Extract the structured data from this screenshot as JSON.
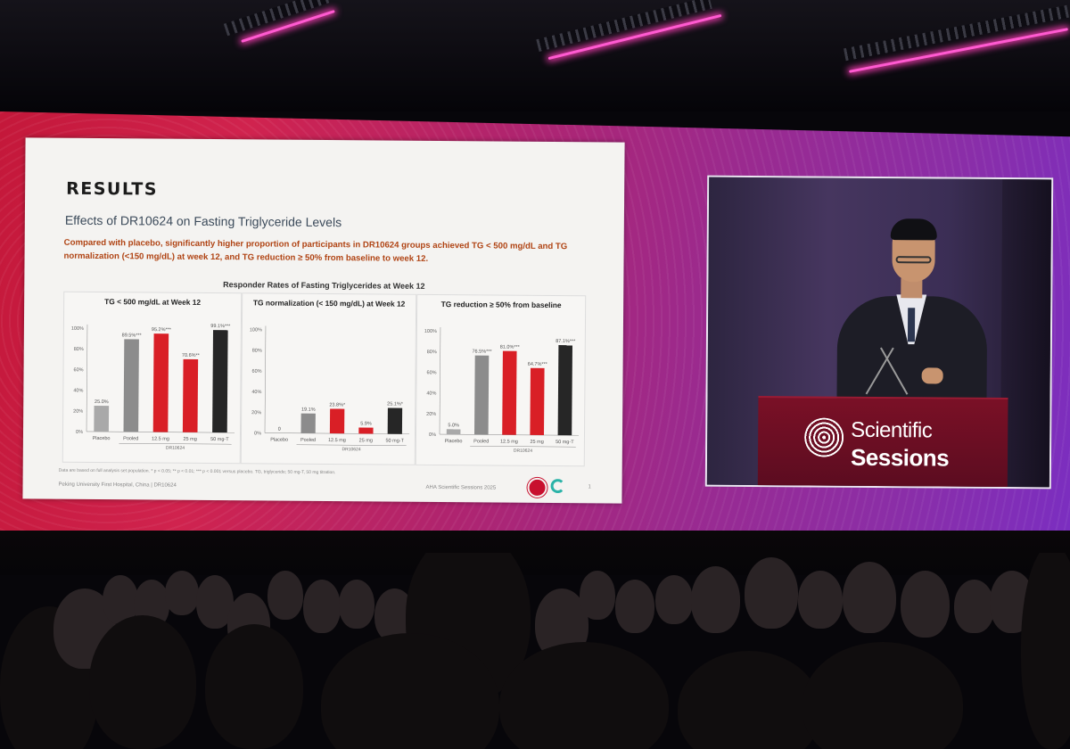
{
  "slide": {
    "heading": "RESULTS",
    "subtitle": "Effects of DR10624 on Fasting Triglyceride Levels",
    "summary": "Compared with placebo, significantly higher proportion of participants in DR10624 groups achieved TG < 500 mg/dL and TG normalization (<150 mg/dL) at week 12, and TG reduction ≥ 50% from baseline to week 12.",
    "chart_title": "Responder Rates of Fasting Triglycerides at Week 12",
    "footnote": "Data are based on full analysis set population. * p < 0.05; ** p < 0.01; *** p < 0.001 versus placebo. TG, triglyceride; 50 mg-T, 50 mg titration.",
    "affiliation": "Peking University First Hospital, China | DR10624",
    "event": "AHA Scientific Sessions 2025",
    "page_number": "1"
  },
  "podium": {
    "line1": "Scientific",
    "line2": "Sessions"
  },
  "colors": {
    "placebo": "#a9a9a9",
    "pooled": "#8c8c8c",
    "dose": "#d91f26",
    "titration": "#262626"
  },
  "chart_data": [
    {
      "type": "bar",
      "title": "TG < 500 mg/dL at Week 12",
      "categories": [
        "Placebo",
        "Pooled",
        "12.5 mg",
        "25 mg",
        "50 mg-T"
      ],
      "group_label": "DR10624",
      "values": [
        25.0,
        89.5,
        95.2,
        70.6,
        99.1
      ],
      "value_labels": [
        "25.0%",
        "89.5%***",
        "95.2%***",
        "70.6%**",
        "99.1%***"
      ],
      "ylim": [
        0,
        100
      ],
      "yticks": [
        "0%",
        "20%",
        "40%",
        "60%",
        "80%",
        "100%"
      ]
    },
    {
      "type": "bar",
      "title": "TG normalization (< 150 mg/dL) at Week 12",
      "categories": [
        "Placebo",
        "Pooled",
        "12.5 mg",
        "25 mg",
        "50 mg-T"
      ],
      "group_label": "DR10624",
      "values": [
        0,
        19.1,
        23.8,
        5.9,
        25.1
      ],
      "value_labels": [
        "0",
        "19.1%",
        "23.8%*",
        "5.9%",
        "25.1%*"
      ],
      "ylim": [
        0,
        100
      ],
      "yticks": [
        "0%",
        "20%",
        "40%",
        "60%",
        "80%",
        "100%"
      ]
    },
    {
      "type": "bar",
      "title": "TG reduction ≥ 50% from baseline",
      "categories": [
        "Placebo",
        "Pooled",
        "12.5 mg",
        "25 mg",
        "50 mg-T"
      ],
      "group_label": "DR10624",
      "values": [
        5.0,
        76.5,
        81.0,
        64.7,
        87.1
      ],
      "value_labels": [
        "5.0%",
        "76.5%***",
        "81.0%***",
        "64.7%***",
        "87.1%***"
      ],
      "ylim": [
        0,
        100
      ],
      "yticks": [
        "0%",
        "20%",
        "40%",
        "60%",
        "80%",
        "100%"
      ]
    }
  ]
}
